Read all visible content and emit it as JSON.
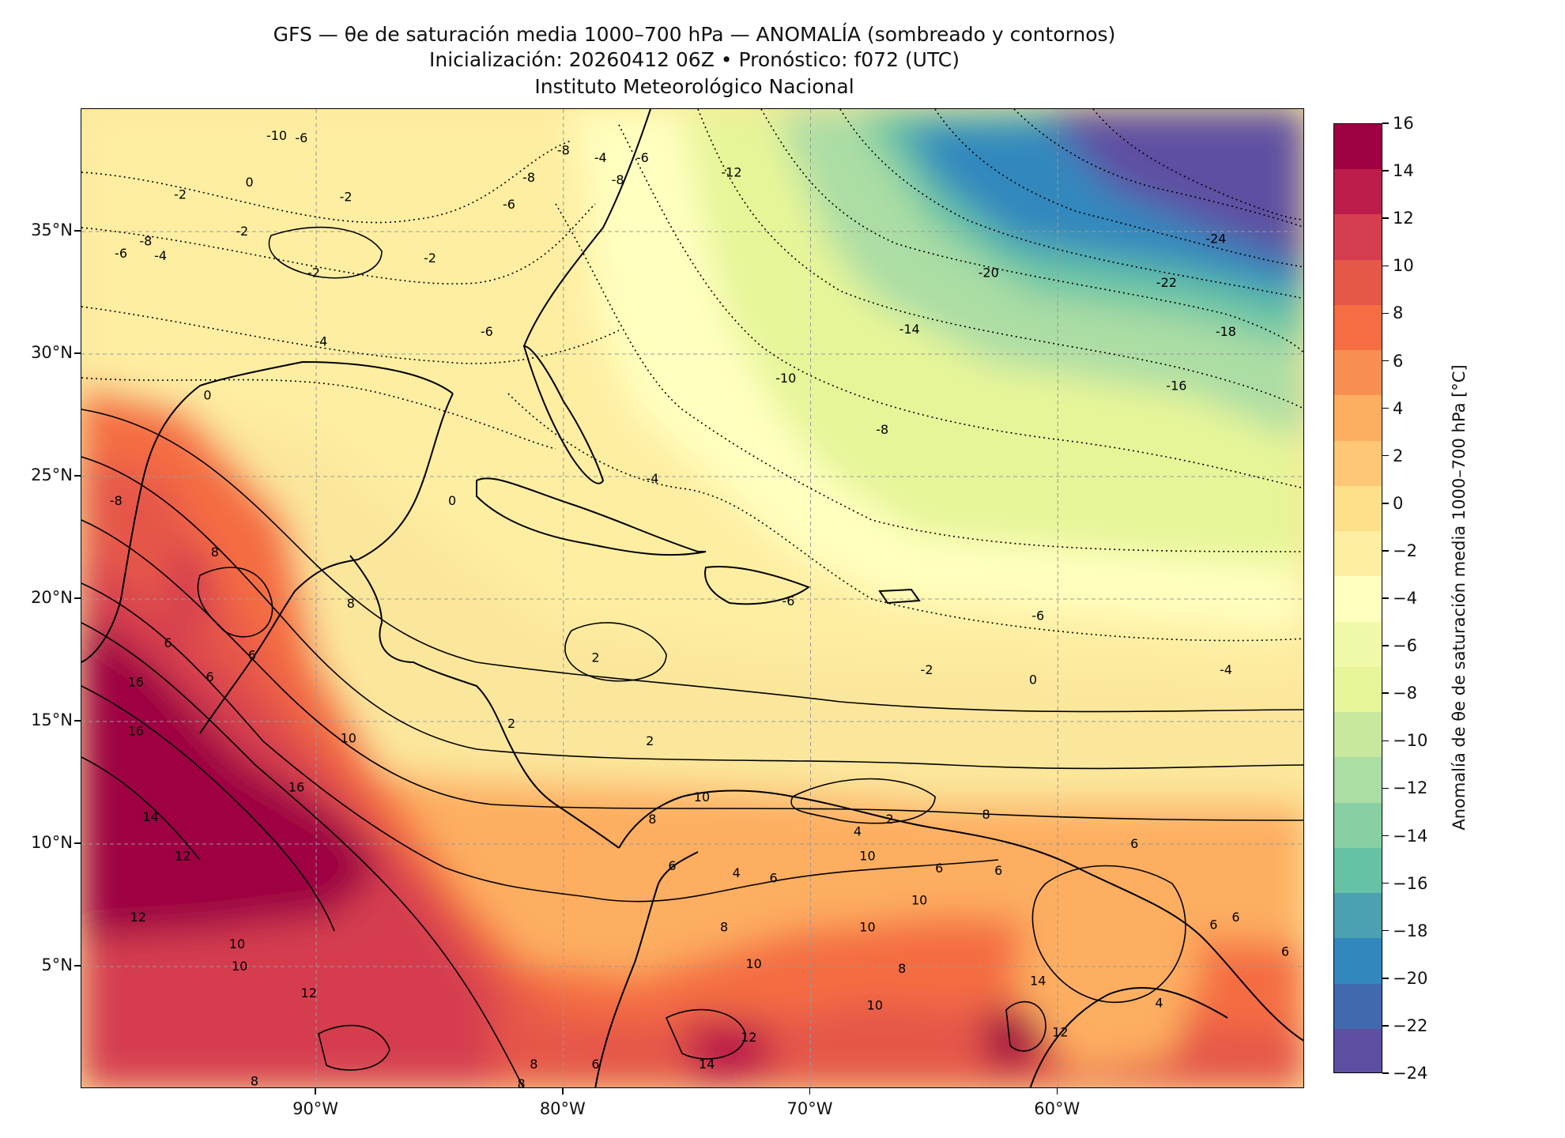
{
  "header": {
    "line1": "GFS — θe de saturación media 1000–700 hPa — ANOMALÍA (sombreado y contornos)",
    "line2": "Inicialización: 20260412 06Z   •   Pronóstico: f072 (UTC)",
    "line3": "Instituto Meteorológico Nacional"
  },
  "map": {
    "lon_range": [
      -99.5,
      -50
    ],
    "lat_range": [
      0,
      40
    ],
    "lat_ticks": [
      "35°N",
      "30°N",
      "25°N",
      "20°N",
      "15°N",
      "10°N",
      "5°N"
    ],
    "lat_values": [
      35,
      30,
      25,
      20,
      15,
      10,
      5
    ],
    "lon_ticks": [
      "90°W",
      "80°W",
      "70°W",
      "60°W"
    ],
    "lon_values": [
      -90,
      -80,
      -70,
      -60
    ],
    "contour_labels": [
      {
        "text": "-10",
        "lon": -91.6,
        "lat": 38.9
      },
      {
        "text": "-6",
        "lon": -90.6,
        "lat": 38.8
      },
      {
        "text": "-8",
        "lon": -80.0,
        "lat": 38.3
      },
      {
        "text": "-4",
        "lon": -78.5,
        "lat": 38.0
      },
      {
        "text": "-6",
        "lon": -76.8,
        "lat": 38.0
      },
      {
        "text": "-8",
        "lon": -81.4,
        "lat": 37.2
      },
      {
        "text": "-8",
        "lon": -77.8,
        "lat": 37.1
      },
      {
        "text": "-12",
        "lon": -73.2,
        "lat": 37.4
      },
      {
        "text": "0",
        "lon": -92.7,
        "lat": 37.0
      },
      {
        "text": "-2",
        "lon": -95.5,
        "lat": 36.5
      },
      {
        "text": "-2",
        "lon": -88.8,
        "lat": 36.4
      },
      {
        "text": "-6",
        "lon": -82.2,
        "lat": 36.1
      },
      {
        "text": "-2",
        "lon": -93.0,
        "lat": 35.0
      },
      {
        "text": "-8",
        "lon": -96.9,
        "lat": 34.6
      },
      {
        "text": "-6",
        "lon": -97.9,
        "lat": 34.1
      },
      {
        "text": "-4",
        "lon": -96.3,
        "lat": 34.0
      },
      {
        "text": "-2",
        "lon": -85.4,
        "lat": 33.9
      },
      {
        "text": "-2",
        "lon": -90.1,
        "lat": 33.3
      },
      {
        "text": "-24",
        "lon": -53.6,
        "lat": 34.7
      },
      {
        "text": "-20",
        "lon": -62.8,
        "lat": 33.3
      },
      {
        "text": "-22",
        "lon": -55.6,
        "lat": 32.9
      },
      {
        "text": "-6",
        "lon": -83.1,
        "lat": 30.9
      },
      {
        "text": "-4",
        "lon": -89.8,
        "lat": 30.5
      },
      {
        "text": "-14",
        "lon": -66.0,
        "lat": 31.0
      },
      {
        "text": "-18",
        "lon": -53.2,
        "lat": 30.9
      },
      {
        "text": "-10",
        "lon": -71.0,
        "lat": 29.0
      },
      {
        "text": "-16",
        "lon": -55.2,
        "lat": 28.7
      },
      {
        "text": "0",
        "lon": -94.4,
        "lat": 28.3
      },
      {
        "text": "-8",
        "lon": -67.1,
        "lat": 26.9
      },
      {
        "text": "-4",
        "lon": -76.4,
        "lat": 24.9
      },
      {
        "text": "0",
        "lon": -84.5,
        "lat": 24.0
      },
      {
        "text": "-8",
        "lon": -98.1,
        "lat": 24.0
      },
      {
        "text": "8",
        "lon": -94.1,
        "lat": 21.9
      },
      {
        "text": "8",
        "lon": -88.6,
        "lat": 19.8
      },
      {
        "text": "-6",
        "lon": -70.9,
        "lat": 19.9
      },
      {
        "text": "-6",
        "lon": -60.8,
        "lat": 19.3
      },
      {
        "text": "6",
        "lon": -96.0,
        "lat": 18.2
      },
      {
        "text": "6",
        "lon": -92.6,
        "lat": 17.7
      },
      {
        "text": "2",
        "lon": -78.7,
        "lat": 17.6
      },
      {
        "text": "16",
        "lon": -97.3,
        "lat": 16.6
      },
      {
        "text": "6",
        "lon": -94.3,
        "lat": 16.8
      },
      {
        "text": "-2",
        "lon": -65.3,
        "lat": 17.1
      },
      {
        "text": "-4",
        "lon": -53.2,
        "lat": 17.1
      },
      {
        "text": "0",
        "lon": -61.0,
        "lat": 16.7
      },
      {
        "text": "2",
        "lon": -82.1,
        "lat": 14.9
      },
      {
        "text": "16",
        "lon": -97.3,
        "lat": 14.6
      },
      {
        "text": "10",
        "lon": -88.7,
        "lat": 14.3
      },
      {
        "text": "2",
        "lon": -76.5,
        "lat": 14.2
      },
      {
        "text": "16",
        "lon": -90.8,
        "lat": 12.3
      },
      {
        "text": "10",
        "lon": -74.4,
        "lat": 11.9
      },
      {
        "text": "14",
        "lon": -96.7,
        "lat": 11.1
      },
      {
        "text": "8",
        "lon": -76.4,
        "lat": 11.0
      },
      {
        "text": "2",
        "lon": -66.8,
        "lat": 11.0
      },
      {
        "text": "8",
        "lon": -62.9,
        "lat": 11.2
      },
      {
        "text": "4",
        "lon": -68.1,
        "lat": 10.5
      },
      {
        "text": "12",
        "lon": -95.4,
        "lat": 9.5
      },
      {
        "text": "6",
        "lon": -75.6,
        "lat": 9.1
      },
      {
        "text": "10",
        "lon": -67.7,
        "lat": 9.5
      },
      {
        "text": "6",
        "lon": -64.8,
        "lat": 9.0
      },
      {
        "text": "6",
        "lon": -62.4,
        "lat": 8.9
      },
      {
        "text": "6",
        "lon": -56.9,
        "lat": 10.0
      },
      {
        "text": "4",
        "lon": -73.0,
        "lat": 8.8
      },
      {
        "text": "6",
        "lon": -71.5,
        "lat": 8.6
      },
      {
        "text": "12",
        "lon": -97.2,
        "lat": 7.0
      },
      {
        "text": "10",
        "lon": -65.6,
        "lat": 7.7
      },
      {
        "text": "8",
        "lon": -73.5,
        "lat": 6.6
      },
      {
        "text": "10",
        "lon": -67.7,
        "lat": 6.6
      },
      {
        "text": "6",
        "lon": -53.7,
        "lat": 6.7
      },
      {
        "text": "6",
        "lon": -52.8,
        "lat": 7.0
      },
      {
        "text": "10",
        "lon": -93.2,
        "lat": 5.9
      },
      {
        "text": "10",
        "lon": -93.1,
        "lat": 5.0
      },
      {
        "text": "10",
        "lon": -72.3,
        "lat": 5.1
      },
      {
        "text": "8",
        "lon": -66.3,
        "lat": 4.9
      },
      {
        "text": "6",
        "lon": -50.8,
        "lat": 5.6
      },
      {
        "text": "12",
        "lon": -90.3,
        "lat": 3.9
      },
      {
        "text": "14",
        "lon": -60.8,
        "lat": 4.4
      },
      {
        "text": "4",
        "lon": -55.9,
        "lat": 3.5
      },
      {
        "text": "10",
        "lon": -67.4,
        "lat": 3.4
      },
      {
        "text": "12",
        "lon": -72.5,
        "lat": 2.1
      },
      {
        "text": "12",
        "lon": -59.9,
        "lat": 2.3
      },
      {
        "text": "14",
        "lon": -74.2,
        "lat": 1.0
      },
      {
        "text": "8",
        "lon": -81.2,
        "lat": 1.0
      },
      {
        "text": "6",
        "lon": -78.7,
        "lat": 1.0
      },
      {
        "text": "8",
        "lon": -92.5,
        "lat": 0.3
      },
      {
        "text": "8",
        "lon": -81.7,
        "lat": 0.2
      }
    ]
  },
  "colorbar": {
    "label": "Anomalía de θe de saturación media 1000–700 hPa [°C]",
    "min": -24,
    "max": 16,
    "ticks": [
      "16",
      "14",
      "12",
      "10",
      "8",
      "6",
      "4",
      "2",
      "0",
      "−2",
      "−4",
      "−6",
      "−8",
      "−10",
      "−12",
      "−14",
      "−16",
      "−18",
      "−20",
      "−22",
      "−24"
    ],
    "colors": [
      "#9e0142",
      "#bd1d4a",
      "#d53e4f",
      "#e55749",
      "#f46d43",
      "#f98e52",
      "#fdae61",
      "#fdc776",
      "#fee08b",
      "#feeea2",
      "#ffffbf",
      "#f0f9a7",
      "#e6f598",
      "#c7e89e",
      "#abdda4",
      "#88cfa4",
      "#66c2a5",
      "#4ba0b1",
      "#3288bd",
      "#4169ae",
      "#5e4fa2"
    ]
  }
}
